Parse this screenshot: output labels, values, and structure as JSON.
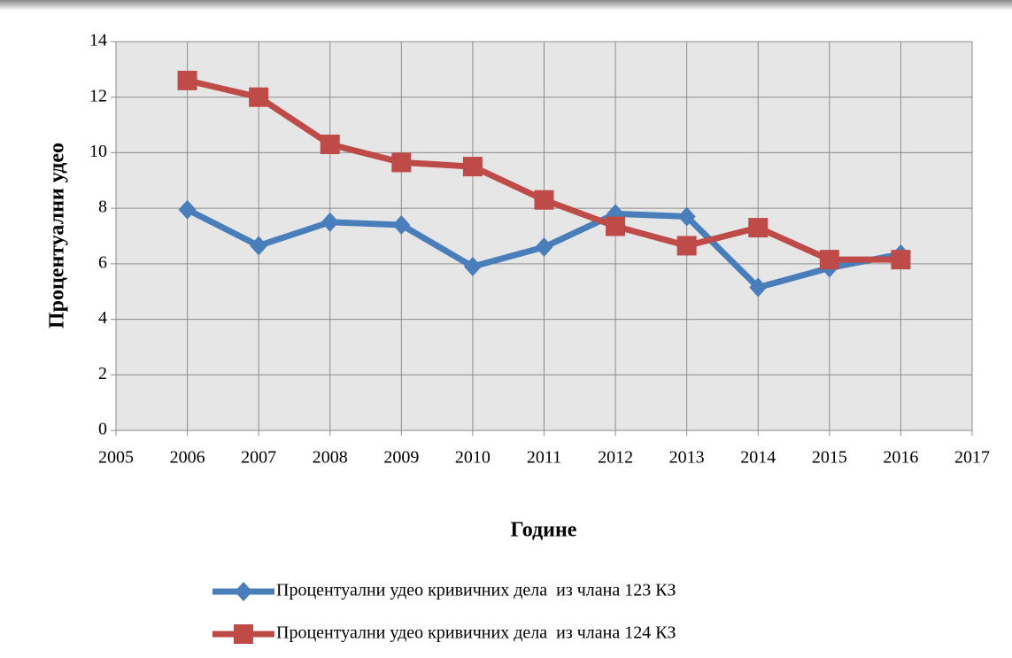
{
  "chart_data": {
    "type": "line",
    "y_label": "Процентуални удео",
    "x_label": "Године",
    "x": [
      2006,
      2007,
      2008,
      2009,
      2010,
      2011,
      2012,
      2013,
      2014,
      2015,
      2016
    ],
    "series": [
      {
        "name": "Процентуални удео кривичних дела  из члана 123 КЗ",
        "color": "#4a7ebb",
        "marker": "diamond",
        "values": [
          7.95,
          6.65,
          7.5,
          7.4,
          5.9,
          6.6,
          7.8,
          7.7,
          5.15,
          5.85,
          6.35
        ]
      },
      {
        "name": "Процентуални удео кривичних дела  из члана 124 КЗ",
        "color": "#be4b48",
        "marker": "square",
        "values": [
          12.6,
          12.0,
          10.3,
          9.65,
          9.5,
          8.3,
          7.35,
          6.65,
          7.3,
          6.15,
          6.15
        ]
      }
    ],
    "xlim": [
      2005,
      2017
    ],
    "xticks": [
      2005,
      2006,
      2007,
      2008,
      2009,
      2010,
      2011,
      2012,
      2013,
      2014,
      2015,
      2016,
      2017
    ],
    "ylim": [
      0,
      14
    ],
    "yticks": [
      0,
      2,
      4,
      6,
      8,
      10,
      12,
      14
    ],
    "grid": true
  }
}
